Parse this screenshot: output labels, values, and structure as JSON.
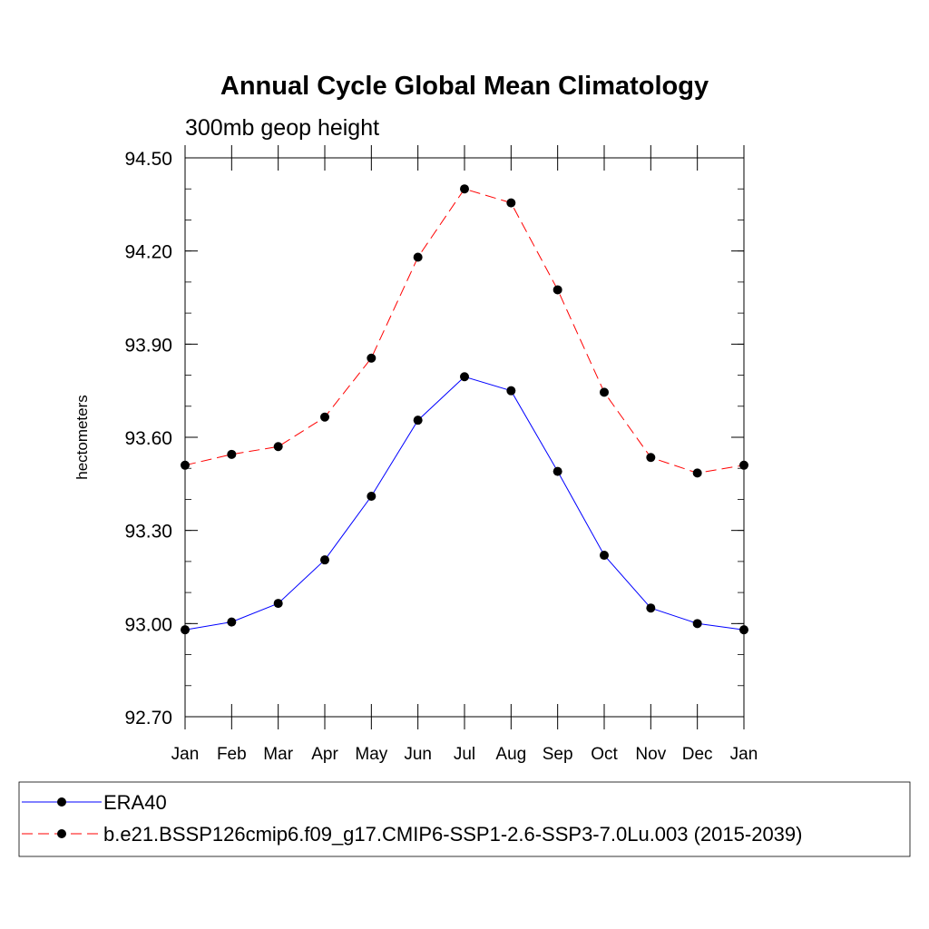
{
  "chart_data": {
    "type": "line",
    "title": "Annual Cycle Global Mean Climatology",
    "subtitle": "300mb geop height",
    "xlabel": "",
    "ylabel": "hectometers",
    "categories": [
      "Jan",
      "Feb",
      "Mar",
      "Apr",
      "May",
      "Jun",
      "Jul",
      "Aug",
      "Sep",
      "Oct",
      "Nov",
      "Dec",
      "Jan"
    ],
    "ylim": [
      92.7,
      94.5
    ],
    "yticks": [
      "92.70",
      "93.00",
      "93.30",
      "93.60",
      "93.90",
      "94.20",
      "94.50"
    ],
    "grid": false,
    "legend_position": "bottom",
    "series": [
      {
        "name": "ERA40",
        "color": "#0000ff",
        "line_style": "solid",
        "marker": "filled-circle",
        "values": [
          92.98,
          93.005,
          93.065,
          93.205,
          93.41,
          93.655,
          93.795,
          93.75,
          93.49,
          93.22,
          93.05,
          93.0,
          92.98
        ]
      },
      {
        "name": "b.e21.BSSP126cmip6.f09_g17.CMIP6-SSP1-2.6-SSP3-7.0Lu.003 (2015-2039)",
        "color": "#ff0000",
        "line_style": "dashed",
        "marker": "filled-circle",
        "values": [
          93.51,
          93.545,
          93.57,
          93.665,
          93.855,
          94.18,
          94.4,
          94.355,
          94.075,
          93.745,
          93.535,
          93.485,
          93.51
        ]
      }
    ]
  }
}
